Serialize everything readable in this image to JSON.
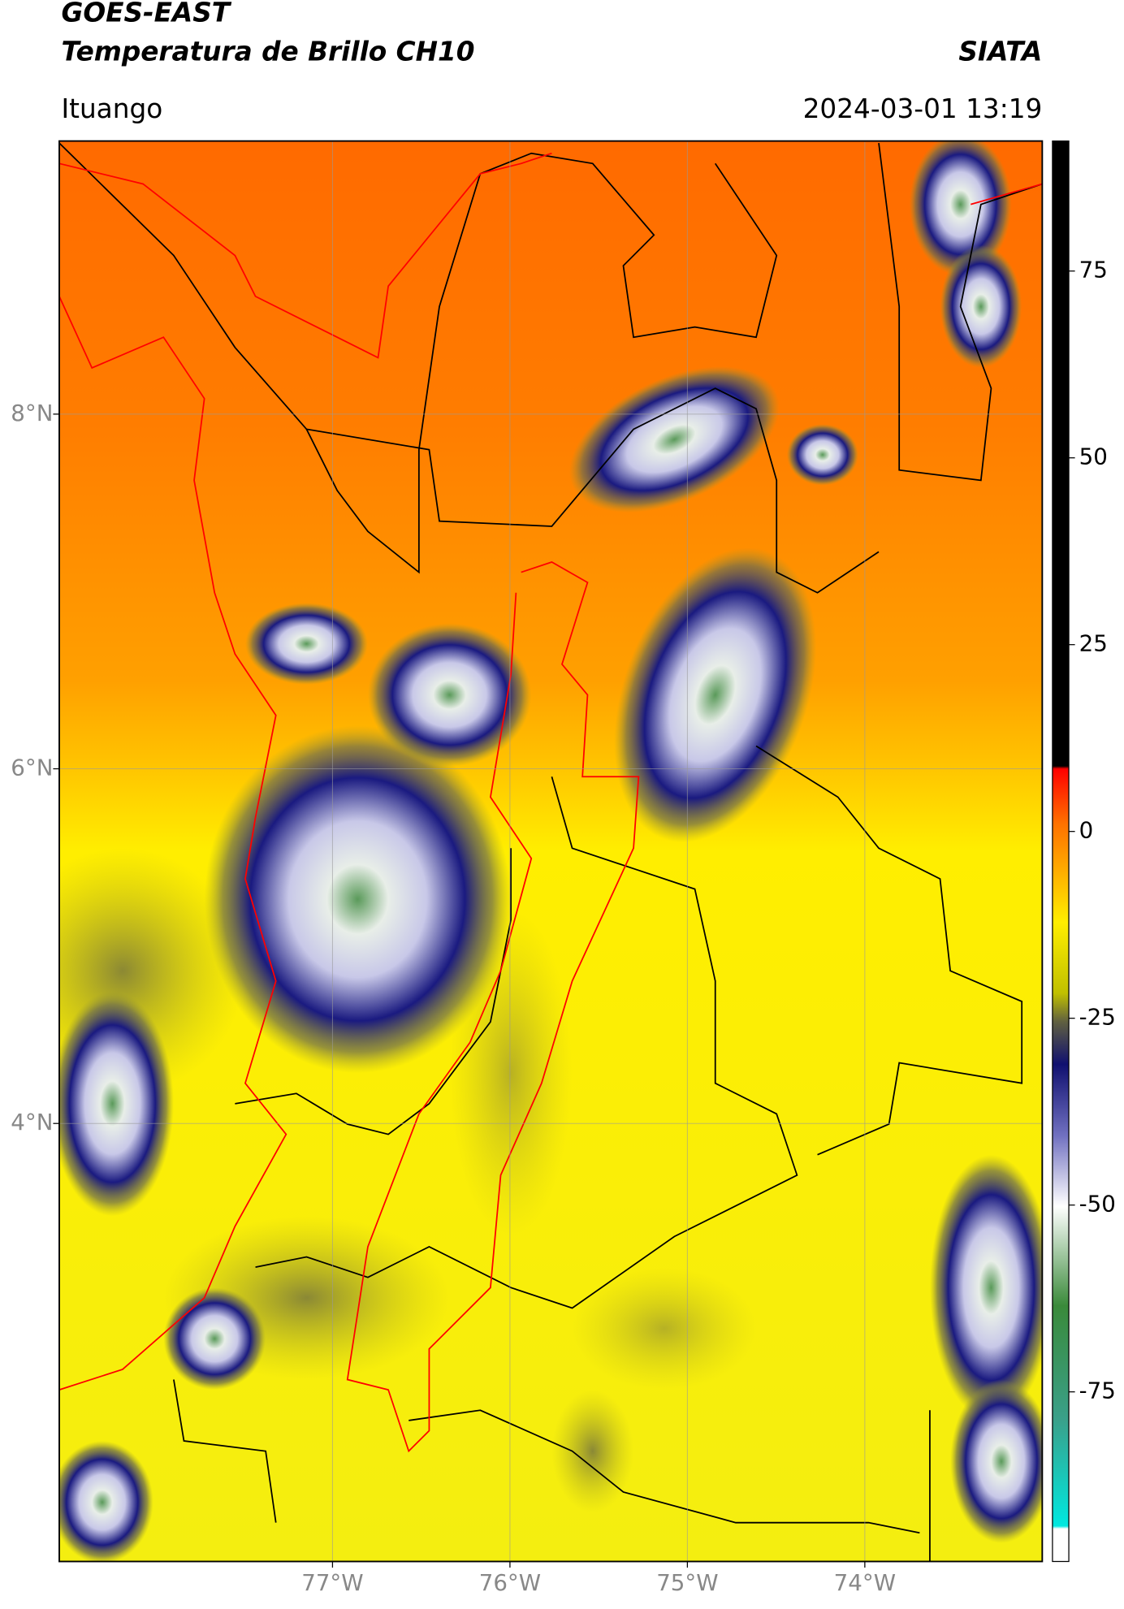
{
  "header": {
    "title": "GOES-EAST",
    "subtitle": "Temperatura de Brillo CH10",
    "source": "SIATA",
    "location": "Ituango",
    "datetime": "2024-03-01 13:19"
  },
  "map": {
    "xlim": [
      -78.54,
      -73.0
    ],
    "ylim": [
      1.53,
      9.54
    ],
    "grid": true,
    "xticks": [
      {
        "value": -77,
        "label": "77°W"
      },
      {
        "value": -76,
        "label": "76°W"
      },
      {
        "value": -75,
        "label": "75°W"
      },
      {
        "value": -74,
        "label": "74°W"
      }
    ],
    "yticks": [
      {
        "value": 8,
        "label": "8°N"
      },
      {
        "value": 6,
        "label": "6°N"
      },
      {
        "value": 4,
        "label": "4°N"
      }
    ]
  },
  "colorbar": {
    "lim": [
      -97.7,
      92.4
    ],
    "ticks": [
      75,
      50,
      25,
      0,
      -25,
      -50,
      -75
    ]
  }
}
